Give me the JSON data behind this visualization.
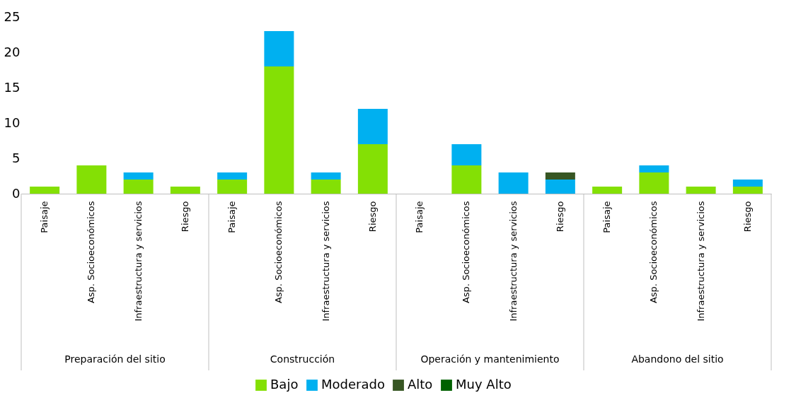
{
  "chart_data": {
    "type": "bar",
    "stacked": true,
    "categories": [
      "Paisaje",
      "Asp. Socioeconómicos",
      "Infraestructura y servicios",
      "Riesgo",
      "Paisaje",
      "Asp. Socioeconómicos",
      "Infraestructura y servicios",
      "Riesgo",
      "Paisaje",
      "Asp. Socioeconómicos",
      "Infraestructura y servicios",
      "Riesgo",
      "Paisaje",
      "Asp. Socioeconómicos",
      "Infraestructura y servicios",
      "Riesgo"
    ],
    "series": [
      {
        "name": "Bajo",
        "color": "#84e005",
        "values": [
          1,
          4,
          2,
          1,
          2,
          18,
          2,
          7,
          0,
          4,
          0,
          0,
          1,
          3,
          1,
          1
        ]
      },
      {
        "name": "Moderado",
        "color": "#00b0f0",
        "values": [
          0,
          0,
          1,
          0,
          1,
          5,
          1,
          5,
          0,
          3,
          3,
          2,
          0,
          1,
          0,
          1
        ]
      },
      {
        "name": "Alto",
        "color": "#375623",
        "values": [
          0,
          0,
          0,
          0,
          0,
          0,
          0,
          0,
          0,
          0,
          0,
          1,
          0,
          0,
          0,
          0
        ]
      },
      {
        "name": "Muy Alto",
        "color": "#006100",
        "values": [
          0,
          0,
          0,
          0,
          0,
          0,
          0,
          0,
          0,
          0,
          0,
          0,
          0,
          0,
          0,
          0
        ]
      }
    ],
    "annotations": [
      "Preparación del sitio",
      "Construcción",
      "Operación y mantenimiento",
      "Abandono del sitio"
    ],
    "ylim": [
      0,
      25
    ],
    "yticks": [
      0,
      5,
      10,
      15,
      20,
      25
    ],
    "grid": false,
    "legend": "bottom"
  }
}
